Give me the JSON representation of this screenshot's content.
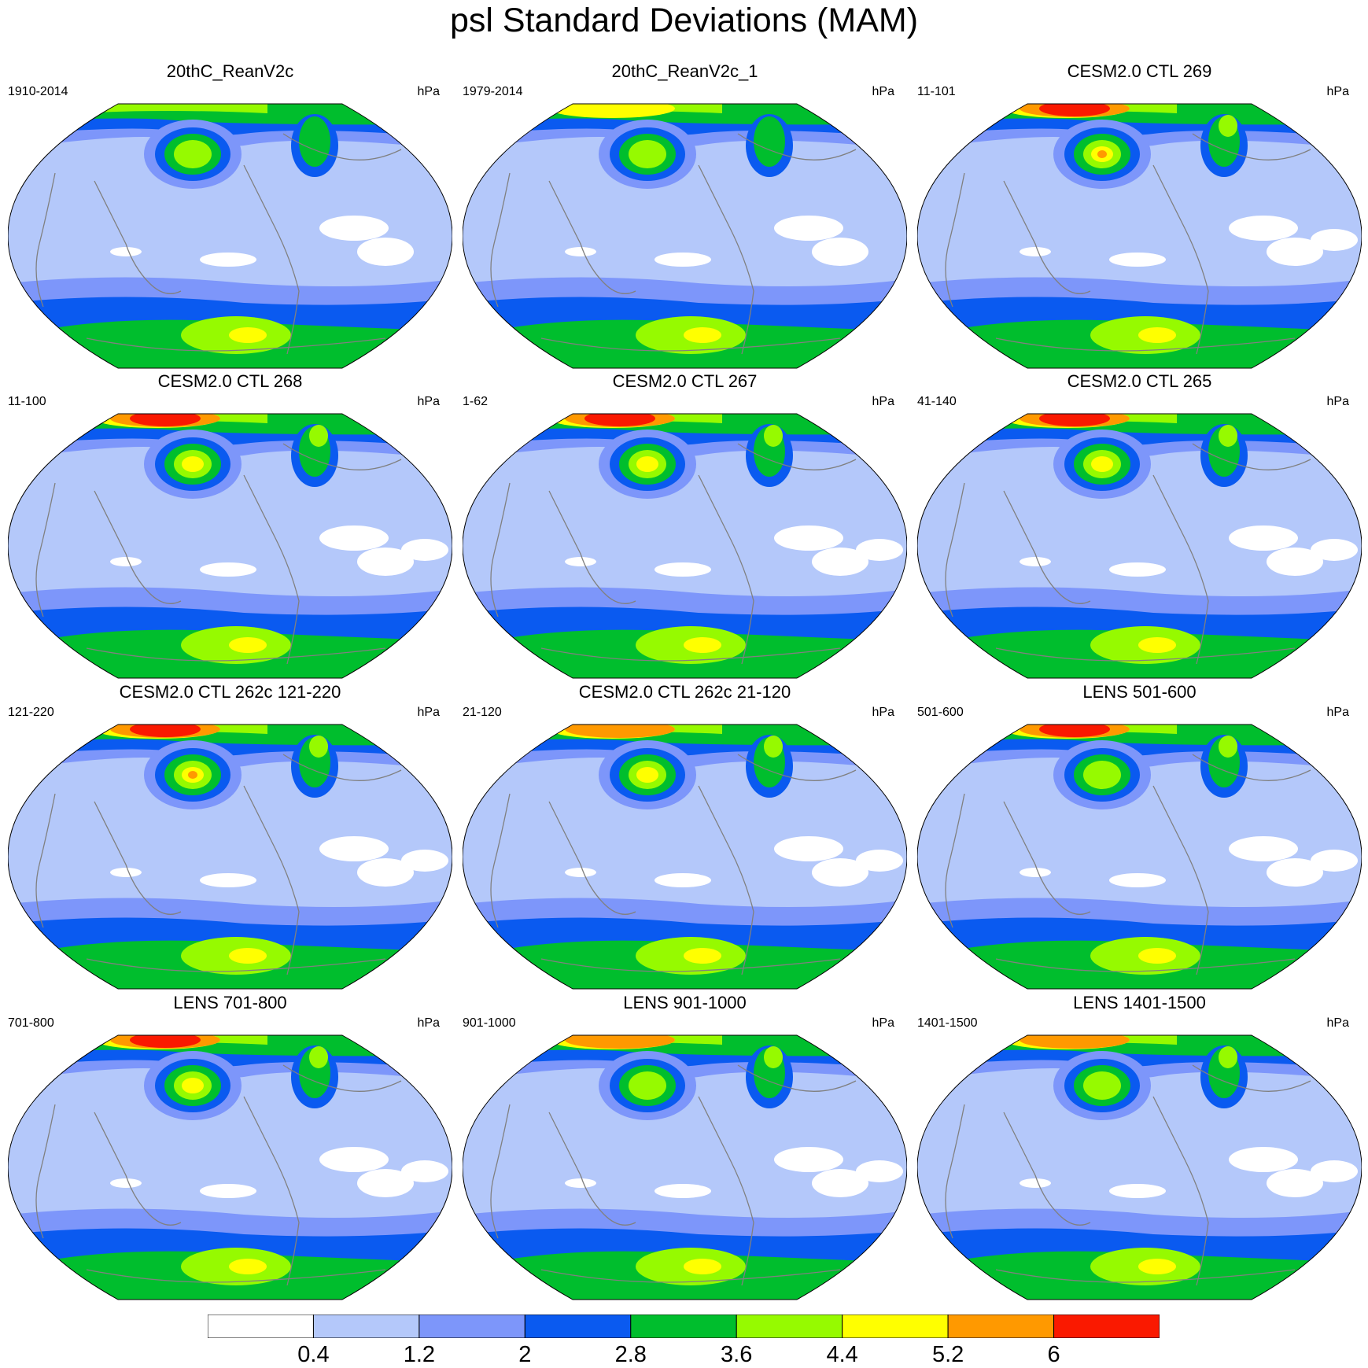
{
  "title": "psl Standard Deviations (MAM)",
  "colors": {
    "levels": [
      "#ffffff",
      "#b4c8fa",
      "#7d96fa",
      "#0a5af0",
      "#00be2d",
      "#96fa00",
      "#ffff00",
      "#ff9900",
      "#fa1900"
    ],
    "coast": "#808080"
  },
  "chart_data": {
    "type": "heatmap",
    "projection": "robinson-like",
    "units": "hPa",
    "levels": [
      0.4,
      1.2,
      2,
      2.8,
      3.6,
      4.4,
      5.2,
      6
    ],
    "panels": [
      {
        "title": "20thC_ReanV2c",
        "left": "1910-2014",
        "right": "hPa",
        "intensity": {
          "np": 1,
          "aleutian": 3,
          "atl": 1,
          "so": 3,
          "icelow": 0
        }
      },
      {
        "title": "20thC_ReanV2c_1",
        "left": "1979-2014",
        "right": "hPa",
        "intensity": {
          "np": 2,
          "aleutian": 3,
          "atl": 1,
          "so": 3,
          "icelow": 0
        }
      },
      {
        "title": "CESM2.0 CTL 269",
        "left": "11-101",
        "right": "hPa",
        "intensity": {
          "np": 5,
          "aleutian": 5,
          "atl": 2,
          "so": 3,
          "icelow": 1
        }
      },
      {
        "title": "CESM2.0 CTL 268",
        "left": "11-100",
        "right": "hPa",
        "intensity": {
          "np": 5,
          "aleutian": 4,
          "atl": 2,
          "so": 3,
          "icelow": 1
        }
      },
      {
        "title": "CESM2.0 CTL 267",
        "left": "1-62",
        "right": "hPa",
        "intensity": {
          "np": 5,
          "aleutian": 4,
          "atl": 2,
          "so": 3,
          "icelow": 1
        }
      },
      {
        "title": "CESM2.0 CTL 265",
        "left": "41-140",
        "right": "hPa",
        "intensity": {
          "np": 5,
          "aleutian": 4,
          "atl": 2,
          "so": 3,
          "icelow": 1
        }
      },
      {
        "title": "CESM2.0 CTL 262c 121-220",
        "left": "121-220",
        "right": "hPa",
        "intensity": {
          "np": 5,
          "aleutian": 5,
          "atl": 2,
          "so": 3,
          "icelow": 1
        }
      },
      {
        "title": "CESM2.0 CTL 262c 21-120",
        "left": "21-120",
        "right": "hPa",
        "intensity": {
          "np": 4,
          "aleutian": 4,
          "atl": 2,
          "so": 3,
          "icelow": 1
        }
      },
      {
        "title": "LENS 501-600",
        "left": "501-600",
        "right": "hPa",
        "intensity": {
          "np": 5,
          "aleutian": 3,
          "atl": 2,
          "so": 3,
          "icelow": 1
        }
      },
      {
        "title": "LENS 701-800",
        "left": "701-800",
        "right": "hPa",
        "intensity": {
          "np": 5,
          "aleutian": 4,
          "atl": 2,
          "so": 3,
          "icelow": 1
        }
      },
      {
        "title": "LENS 901-1000",
        "left": "901-1000",
        "right": "hPa",
        "intensity": {
          "np": 4,
          "aleutian": 3,
          "atl": 2,
          "so": 3,
          "icelow": 1
        }
      },
      {
        "title": "LENS 1401-1500",
        "left": "1401-1500",
        "right": "hPa",
        "intensity": {
          "np": 4,
          "aleutian": 3,
          "atl": 2,
          "so": 3,
          "icelow": 1
        }
      }
    ]
  }
}
